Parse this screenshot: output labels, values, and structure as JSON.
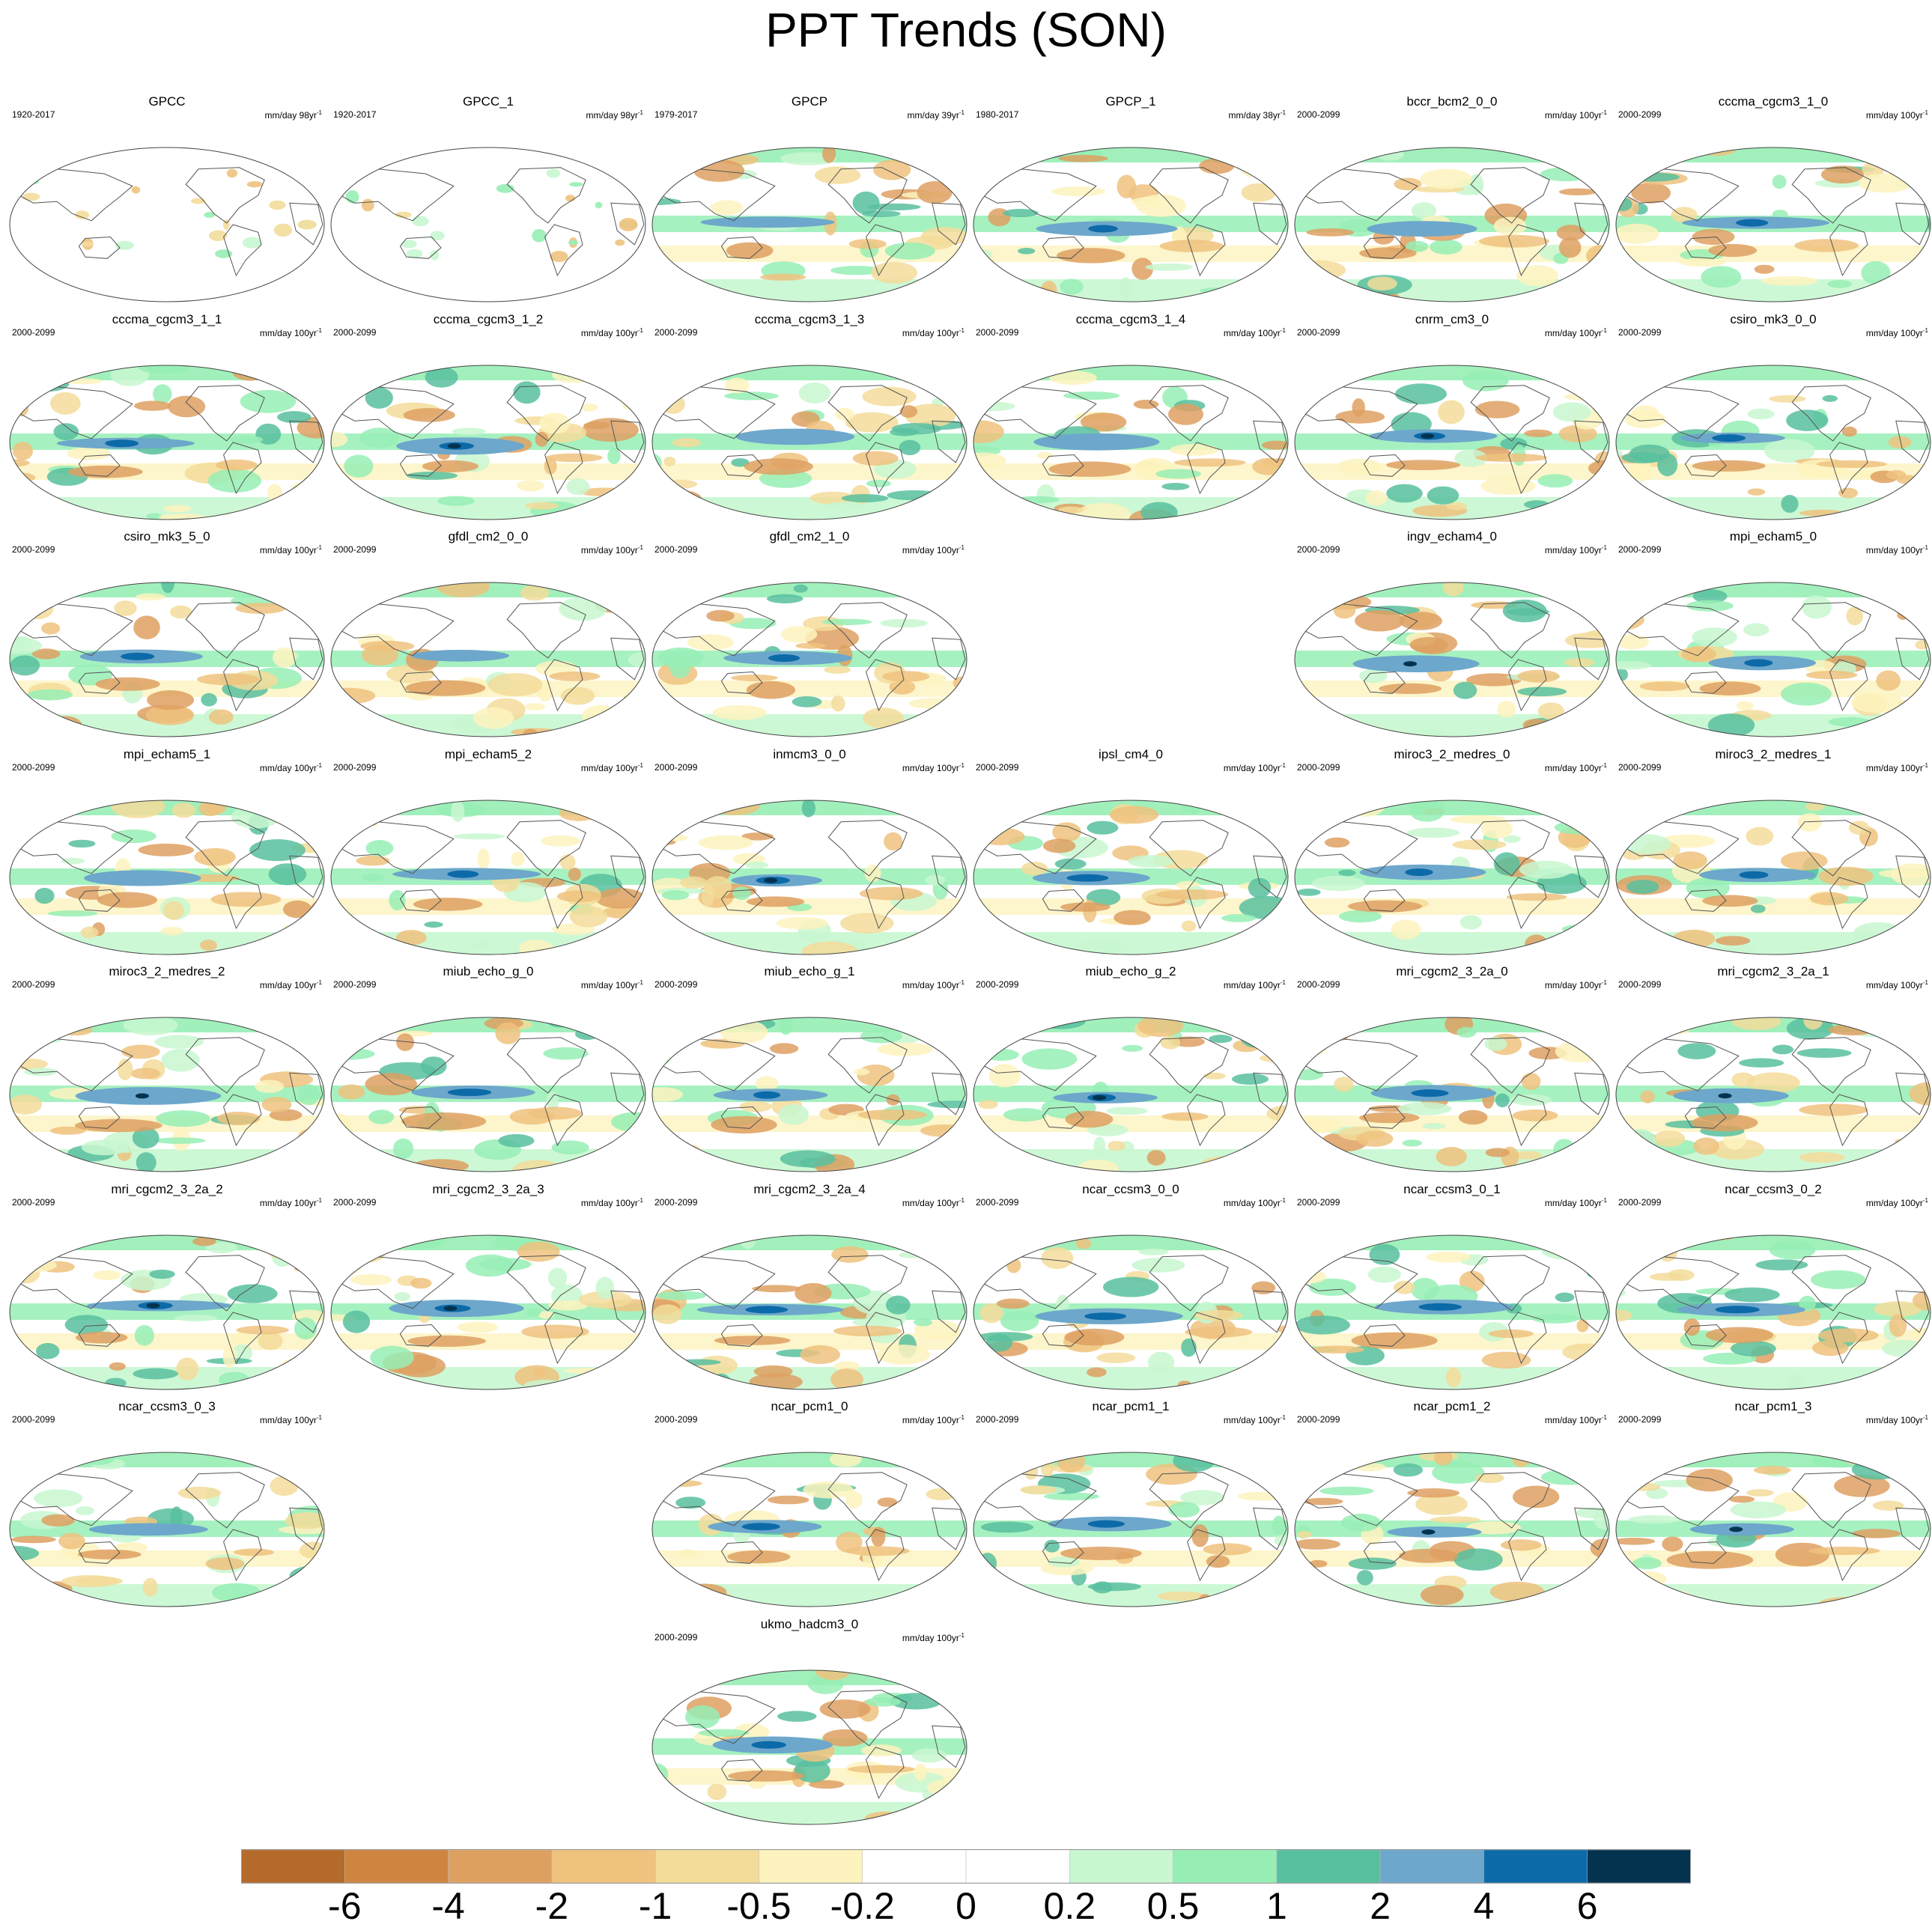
{
  "title": "PPT Trends (SON)",
  "chart_data": {
    "type": "heatmap",
    "title": "PPT Trends (SON)",
    "layout": "map panel grid, 6 columns",
    "projection": "Robinson-style global maps, Pacific-centred",
    "colorbar": {
      "levels": [
        "-6",
        "-4",
        "-2",
        "-1",
        "-0.5",
        "-0.2",
        "0",
        "0.2",
        "0.5",
        "1",
        "2",
        "4",
        "6"
      ],
      "colors": [
        "#b36a2a",
        "#cd853f",
        "#dea061",
        "#efc27e",
        "#f3dc9a",
        "#fdf3be",
        "#ffffff",
        "#ffffff",
        "#c8f7d0",
        "#97eeb5",
        "#58c09f",
        "#6da7cb",
        "#0c6aa8",
        "#03334f"
      ],
      "placement": "bottom"
    },
    "panels": [
      {
        "name": "GPCC",
        "row": 0,
        "col": 0,
        "period": "1920-2017",
        "units": "mm/day 98yr",
        "sup": "-1",
        "coverage": "land"
      },
      {
        "name": "GPCC_1",
        "row": 0,
        "col": 1,
        "period": "1920-2017",
        "units": "mm/day 98yr",
        "sup": "-1",
        "coverage": "land"
      },
      {
        "name": "GPCP",
        "row": 0,
        "col": 2,
        "period": "1979-2017",
        "units": "mm/day 39yr",
        "sup": "-1",
        "coverage": "global"
      },
      {
        "name": "GPCP_1",
        "row": 0,
        "col": 3,
        "period": "1980-2017",
        "units": "mm/day 38yr",
        "sup": "-1",
        "coverage": "global"
      },
      {
        "name": "bccr_bcm2_0_0",
        "row": 0,
        "col": 4,
        "period": "2000-2099",
        "units": "mm/day 100yr",
        "sup": "-1",
        "coverage": "global"
      },
      {
        "name": "cccma_cgcm3_1_0",
        "row": 0,
        "col": 5,
        "period": "2000-2099",
        "units": "mm/day 100yr",
        "sup": "-1",
        "coverage": "global"
      },
      {
        "name": "cccma_cgcm3_1_1",
        "row": 1,
        "col": 0,
        "period": "2000-2099",
        "units": "mm/day 100yr",
        "sup": "-1",
        "coverage": "global"
      },
      {
        "name": "cccma_cgcm3_1_2",
        "row": 1,
        "col": 1,
        "period": "2000-2099",
        "units": "mm/day 100yr",
        "sup": "-1",
        "coverage": "global"
      },
      {
        "name": "cccma_cgcm3_1_3",
        "row": 1,
        "col": 2,
        "period": "2000-2099",
        "units": "mm/day 100yr",
        "sup": "-1",
        "coverage": "global"
      },
      {
        "name": "cccma_cgcm3_1_4",
        "row": 1,
        "col": 3,
        "period": "2000-2099",
        "units": "mm/day 100yr",
        "sup": "-1",
        "coverage": "global"
      },
      {
        "name": "cnrm_cm3_0",
        "row": 1,
        "col": 4,
        "period": "2000-2099",
        "units": "mm/day 100yr",
        "sup": "-1",
        "coverage": "global"
      },
      {
        "name": "csiro_mk3_0_0",
        "row": 1,
        "col": 5,
        "period": "2000-2099",
        "units": "mm/day 100yr",
        "sup": "-1",
        "coverage": "global"
      },
      {
        "name": "csiro_mk3_5_0",
        "row": 2,
        "col": 0,
        "period": "2000-2099",
        "units": "mm/day 100yr",
        "sup": "-1",
        "coverage": "global"
      },
      {
        "name": "gfdl_cm2_0_0",
        "row": 2,
        "col": 1,
        "period": "2000-2099",
        "units": "mm/day 100yr",
        "sup": "-1",
        "coverage": "global"
      },
      {
        "name": "gfdl_cm2_1_0",
        "row": 2,
        "col": 2,
        "period": "2000-2099",
        "units": "mm/day 100yr",
        "sup": "-1",
        "coverage": "global"
      },
      {
        "name": "ingv_echam4_0",
        "row": 2,
        "col": 4,
        "period": "2000-2099",
        "units": "mm/day 100yr",
        "sup": "-1",
        "coverage": "global"
      },
      {
        "name": "mpi_echam5_0",
        "row": 2,
        "col": 5,
        "period": "2000-2099",
        "units": "mm/day 100yr",
        "sup": "-1",
        "coverage": "global"
      },
      {
        "name": "mpi_echam5_1",
        "row": 3,
        "col": 0,
        "period": "2000-2099",
        "units": "mm/day 100yr",
        "sup": "-1",
        "coverage": "global"
      },
      {
        "name": "mpi_echam5_2",
        "row": 3,
        "col": 1,
        "period": "2000-2099",
        "units": "mm/day 100yr",
        "sup": "-1",
        "coverage": "global"
      },
      {
        "name": "inmcm3_0_0",
        "row": 3,
        "col": 2,
        "period": "2000-2099",
        "units": "mm/day 100yr",
        "sup": "-1",
        "coverage": "global"
      },
      {
        "name": "ipsl_cm4_0",
        "row": 3,
        "col": 3,
        "period": "2000-2099",
        "units": "mm/day 100yr",
        "sup": "-1",
        "coverage": "global"
      },
      {
        "name": "miroc3_2_medres_0",
        "row": 3,
        "col": 4,
        "period": "2000-2099",
        "units": "mm/day 100yr",
        "sup": "-1",
        "coverage": "global"
      },
      {
        "name": "miroc3_2_medres_1",
        "row": 3,
        "col": 5,
        "period": "2000-2099",
        "units": "mm/day 100yr",
        "sup": "-1",
        "coverage": "global"
      },
      {
        "name": "miroc3_2_medres_2",
        "row": 4,
        "col": 0,
        "period": "2000-2099",
        "units": "mm/day 100yr",
        "sup": "-1",
        "coverage": "global"
      },
      {
        "name": "miub_echo_g_0",
        "row": 4,
        "col": 1,
        "period": "2000-2099",
        "units": "mm/day 100yr",
        "sup": "-1",
        "coverage": "global"
      },
      {
        "name": "miub_echo_g_1",
        "row": 4,
        "col": 2,
        "period": "2000-2099",
        "units": "mm/day 100yr",
        "sup": "-1",
        "coverage": "global"
      },
      {
        "name": "miub_echo_g_2",
        "row": 4,
        "col": 3,
        "period": "2000-2099",
        "units": "mm/day 100yr",
        "sup": "-1",
        "coverage": "global"
      },
      {
        "name": "mri_cgcm2_3_2a_0",
        "row": 4,
        "col": 4,
        "period": "2000-2099",
        "units": "mm/day 100yr",
        "sup": "-1",
        "coverage": "global"
      },
      {
        "name": "mri_cgcm2_3_2a_1",
        "row": 4,
        "col": 5,
        "period": "2000-2099",
        "units": "mm/day 100yr",
        "sup": "-1",
        "coverage": "global"
      },
      {
        "name": "mri_cgcm2_3_2a_2",
        "row": 5,
        "col": 0,
        "period": "2000-2099",
        "units": "mm/day 100yr",
        "sup": "-1",
        "coverage": "global"
      },
      {
        "name": "mri_cgcm2_3_2a_3",
        "row": 5,
        "col": 1,
        "period": "2000-2099",
        "units": "mm/day 100yr",
        "sup": "-1",
        "coverage": "global"
      },
      {
        "name": "mri_cgcm2_3_2a_4",
        "row": 5,
        "col": 2,
        "period": "2000-2099",
        "units": "mm/day 100yr",
        "sup": "-1",
        "coverage": "global"
      },
      {
        "name": "ncar_ccsm3_0_0",
        "row": 5,
        "col": 3,
        "period": "2000-2099",
        "units": "mm/day 100yr",
        "sup": "-1",
        "coverage": "global"
      },
      {
        "name": "ncar_ccsm3_0_1",
        "row": 5,
        "col": 4,
        "period": "2000-2099",
        "units": "mm/day 100yr",
        "sup": "-1",
        "coverage": "global"
      },
      {
        "name": "ncar_ccsm3_0_2",
        "row": 5,
        "col": 5,
        "period": "2000-2099",
        "units": "mm/day 100yr",
        "sup": "-1",
        "coverage": "global"
      },
      {
        "name": "ncar_ccsm3_0_3",
        "row": 6,
        "col": 0,
        "period": "2000-2099",
        "units": "mm/day 100yr",
        "sup": "-1",
        "coverage": "global"
      },
      {
        "name": "ncar_pcm1_0",
        "row": 6,
        "col": 2,
        "period": "2000-2099",
        "units": "mm/day 100yr",
        "sup": "-1",
        "coverage": "global"
      },
      {
        "name": "ncar_pcm1_1",
        "row": 6,
        "col": 3,
        "period": "2000-2099",
        "units": "mm/day 100yr",
        "sup": "-1",
        "coverage": "global"
      },
      {
        "name": "ncar_pcm1_2",
        "row": 6,
        "col": 4,
        "period": "2000-2099",
        "units": "mm/day 100yr",
        "sup": "-1",
        "coverage": "global"
      },
      {
        "name": "ncar_pcm1_3",
        "row": 6,
        "col": 5,
        "period": "2000-2099",
        "units": "mm/day 100yr",
        "sup": "-1",
        "coverage": "global"
      },
      {
        "name": "ukmo_hadcm3_0",
        "row": 7,
        "col": 2,
        "period": "2000-2099",
        "units": "mm/day 100yr",
        "sup": "-1",
        "coverage": "global"
      }
    ]
  }
}
